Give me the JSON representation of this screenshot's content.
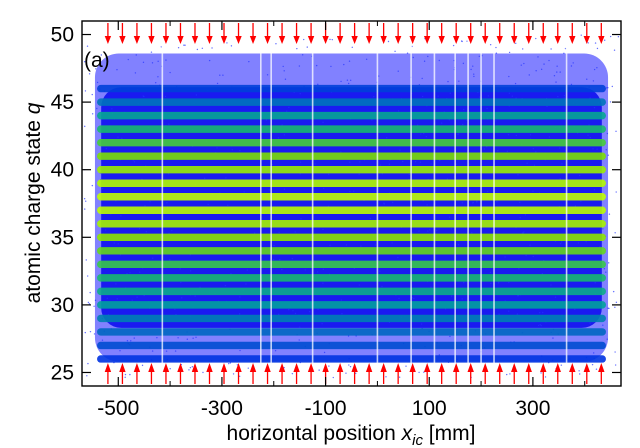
{
  "chart_data": {
    "type": "heatmap",
    "panel_label": "(a)",
    "xlabel": {
      "prefix": "horizontal position ",
      "var": "x",
      "sub": "ic",
      "suffix": " [mm]"
    },
    "ylabel": {
      "prefix": "atomic charge state ",
      "var": "q"
    },
    "xlim": [
      -570,
      470
    ],
    "ylim": [
      24,
      51
    ],
    "x_ticks": [
      -500,
      -300,
      -100,
      100,
      300
    ],
    "x_tick_labels": [
      "-500",
      "-300",
      "-100",
      "100",
      "300"
    ],
    "x_minor_ticks": [
      -400,
      -200,
      0,
      200,
      400
    ],
    "y_ticks": [
      25,
      30,
      35,
      40,
      45,
      50
    ],
    "y_tick_labels": [
      "25",
      "30",
      "35",
      "40",
      "45",
      "50"
    ],
    "arrow_x_positions": [
      -520,
      -492,
      -464,
      -436,
      -408,
      -380,
      -352,
      -324,
      -296,
      -268,
      -240,
      -212,
      -184,
      -156,
      -128,
      -100,
      -72,
      -44,
      -16,
      12,
      40,
      68,
      96,
      124,
      152,
      180,
      208,
      236,
      264,
      292,
      320,
      348,
      376,
      404,
      432
    ],
    "arrow_color": "#ff0000",
    "colormap": [
      "#0000ff",
      "#00a0a0",
      "#20c060",
      "#80e000",
      "#c0ff00"
    ],
    "charge_states": [
      26,
      27,
      28,
      29,
      30,
      31,
      32,
      33,
      34,
      35,
      36,
      37,
      38,
      39,
      40,
      41,
      42,
      43,
      44,
      45,
      46
    ],
    "intensity_by_charge_state": [
      0.08,
      0.12,
      0.16,
      0.2,
      0.26,
      0.34,
      0.44,
      0.56,
      0.68,
      0.8,
      0.9,
      0.98,
      1.0,
      0.95,
      0.86,
      0.74,
      0.6,
      0.44,
      0.3,
      0.18,
      0.1
    ],
    "distribution_envelope": {
      "x_min": -545,
      "x_max": 445,
      "q_low": 25.8,
      "q_high": 48.6
    },
    "gap_x_positions": [
      -415,
      -225,
      -205,
      -125,
      0,
      65,
      110,
      150,
      175,
      200,
      225,
      365
    ]
  }
}
